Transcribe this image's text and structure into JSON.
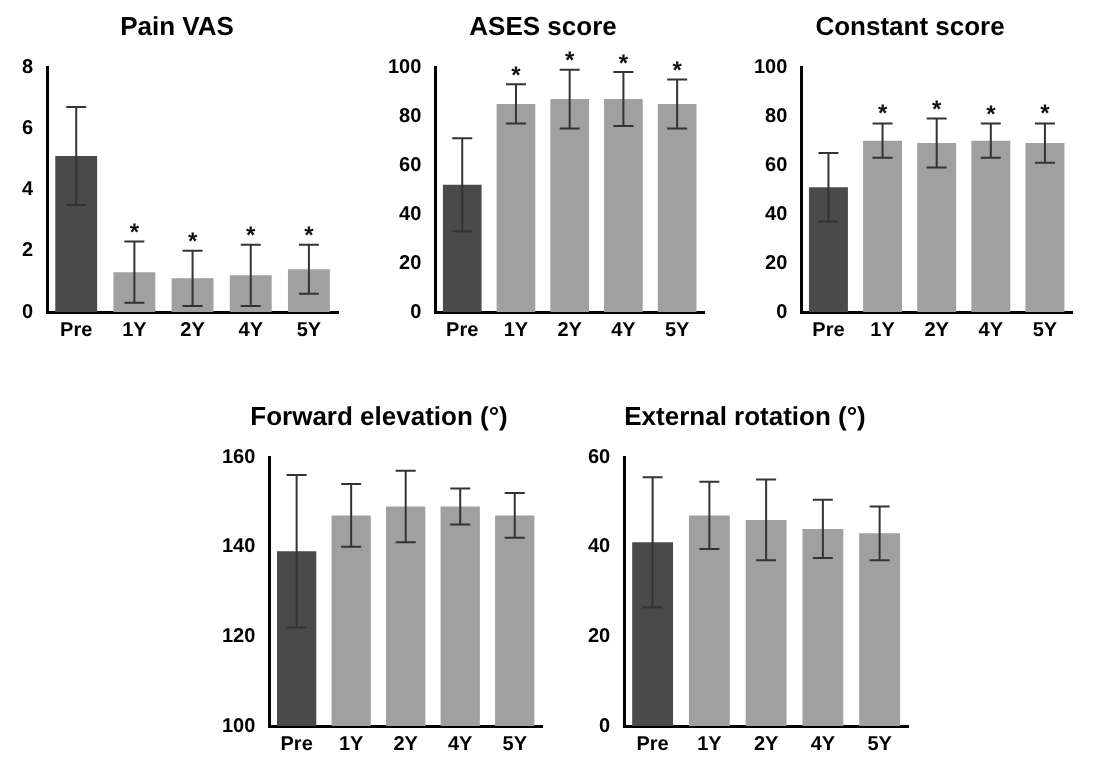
{
  "chart_data": [
    {
      "type": "bar",
      "title": "Pain VAS",
      "categories": [
        "Pre",
        "1Y",
        "2Y",
        "4Y",
        "5Y"
      ],
      "values": [
        5.1,
        1.3,
        1.1,
        1.2,
        1.4
      ],
      "errors": [
        1.6,
        1.0,
        0.9,
        1.0,
        0.8
      ],
      "colors": [
        "#4a4a4a",
        "#a0a0a0",
        "#a0a0a0",
        "#a0a0a0",
        "#a0a0a0"
      ],
      "ylim": [
        0,
        8
      ],
      "yticks": [
        0,
        2,
        4,
        6,
        8
      ],
      "grid": false,
      "annotations": [
        {
          "text": "*",
          "x": "1Y",
          "y": 2.3
        },
        {
          "text": "*",
          "x": "2Y",
          "y": 2.0
        },
        {
          "text": "*",
          "x": "4Y",
          "y": 2.2
        },
        {
          "text": "*",
          "x": "5Y",
          "y": 2.2
        }
      ]
    },
    {
      "type": "bar",
      "title": "ASES score",
      "categories": [
        "Pre",
        "1Y",
        "2Y",
        "4Y",
        "5Y"
      ],
      "values": [
        52,
        85,
        87,
        87,
        85
      ],
      "errors": [
        19,
        8,
        12,
        11,
        10
      ],
      "colors": [
        "#4a4a4a",
        "#a0a0a0",
        "#a0a0a0",
        "#a0a0a0",
        "#a0a0a0"
      ],
      "ylim": [
        0,
        100
      ],
      "yticks": [
        0,
        20,
        40,
        60,
        80,
        100
      ],
      "grid": false,
      "annotations": [
        {
          "text": "*",
          "x": "1Y",
          "y": 93
        },
        {
          "text": "*",
          "x": "2Y",
          "y": 99
        },
        {
          "text": "*",
          "x": "4Y",
          "y": 98
        },
        {
          "text": "*",
          "x": "5Y",
          "y": 95
        }
      ]
    },
    {
      "type": "bar",
      "title": "Constant score",
      "categories": [
        "Pre",
        "1Y",
        "2Y",
        "4Y",
        "5Y"
      ],
      "values": [
        51,
        70,
        69,
        70,
        69
      ],
      "errors": [
        14,
        7,
        10,
        7,
        8
      ],
      "colors": [
        "#4a4a4a",
        "#a0a0a0",
        "#a0a0a0",
        "#a0a0a0",
        "#a0a0a0"
      ],
      "ylim": [
        0,
        100
      ],
      "yticks": [
        0,
        20,
        40,
        60,
        80,
        100
      ],
      "grid": false,
      "annotations": [
        {
          "text": "*",
          "x": "1Y",
          "y": 77.5
        },
        {
          "text": "*",
          "x": "2Y",
          "y": 79
        },
        {
          "text": "*",
          "x": "4Y",
          "y": 77
        },
        {
          "text": "*",
          "x": "5Y",
          "y": 77.5
        }
      ]
    },
    {
      "type": "bar",
      "title": "Forward elevation (°)",
      "categories": [
        "Pre",
        "1Y",
        "2Y",
        "4Y",
        "5Y"
      ],
      "values": [
        139,
        147,
        149,
        149,
        147
      ],
      "errors": [
        17,
        7,
        8,
        4,
        5
      ],
      "colors": [
        "#4a4a4a",
        "#a0a0a0",
        "#a0a0a0",
        "#a0a0a0",
        "#a0a0a0"
      ],
      "ylim": [
        100,
        160
      ],
      "yticks": [
        100,
        120,
        140,
        160
      ],
      "grid": false
    },
    {
      "type": "bar",
      "title": "External rotation (°)",
      "categories": [
        "Pre",
        "1Y",
        "2Y",
        "4Y",
        "5Y"
      ],
      "values": [
        41,
        47,
        46,
        44,
        43
      ],
      "errors": [
        14.5,
        7.5,
        9,
        6.5,
        6
      ],
      "colors": [
        "#4a4a4a",
        "#a0a0a0",
        "#a0a0a0",
        "#a0a0a0",
        "#a0a0a0"
      ],
      "ylim": [
        0,
        60
      ],
      "yticks": [
        0,
        20,
        40,
        60
      ],
      "grid": false
    }
  ]
}
